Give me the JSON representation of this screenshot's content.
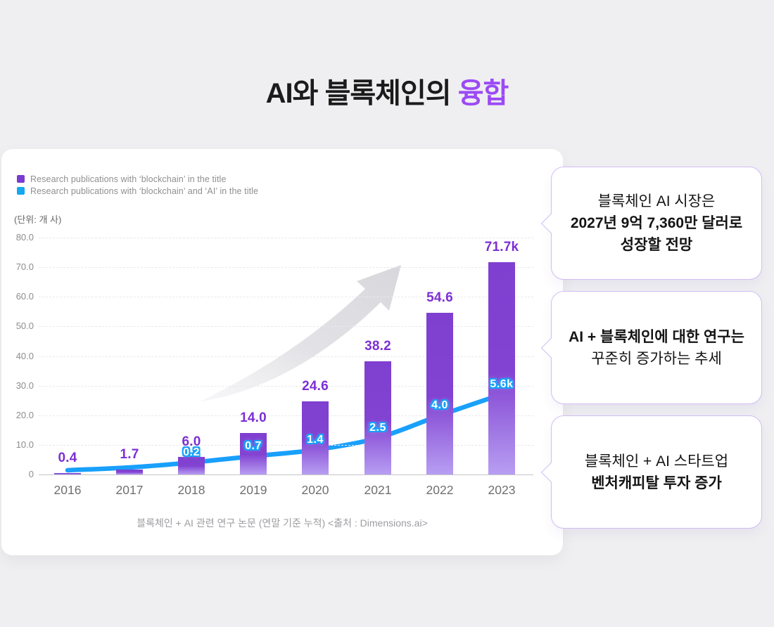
{
  "page": {
    "background": "#efeff1"
  },
  "title": {
    "prefix": "AI와 블록체인의 ",
    "highlight": "융합",
    "highlight_color": "#9b4af5"
  },
  "legend": [
    {
      "label": "Research publications with ‘blockchain’ in the title",
      "color": "#7a3bd0"
    },
    {
      "label": "Research publications with ‘blockchain’ and ‘AI’ in the title",
      "color": "#14a8f0"
    }
  ],
  "unit_label": "(단위: 개 사)",
  "caption": "블록체인 + AI 관련 연구 논문 (연말 기준 누적) <출처 : Dimensions.ai>",
  "chart_data": {
    "type": "bar",
    "title": "AI와 블록체인의 융합",
    "categories": [
      "2016",
      "2017",
      "2018",
      "2019",
      "2020",
      "2021",
      "2022",
      "2023"
    ],
    "series": [
      {
        "name": "Research publications with ‘blockchain’ in the title",
        "type": "bar",
        "unit": "thousands",
        "values": [
          0.4,
          1.7,
          6.0,
          14.0,
          24.6,
          38.2,
          54.6,
          71.7
        ],
        "labels": [
          "0.4",
          "1.7",
          "6.0",
          "14.0",
          "24.6",
          "38.2",
          "54.6",
          "71.7k"
        ],
        "color": "#7f3fd0"
      },
      {
        "name": "Research publications with ‘blockchain’ and ‘AI’ in the title",
        "type": "line",
        "unit": "thousands",
        "values": [
          0.0,
          0.05,
          0.2,
          0.7,
          1.4,
          2.5,
          4.0,
          5.6
        ],
        "labels": [
          "",
          "",
          "0.2",
          "0.7",
          "1.4",
          "2.5",
          "4.0",
          "5.6k"
        ],
        "color": "#18a0fb"
      }
    ],
    "ylabel": "(단위: 개 사)",
    "ylim": [
      0,
      80
    ],
    "yticks": [
      "80.0",
      "70.0",
      "60.0",
      "50.0",
      "40.0",
      "30.0",
      "20.0",
      "10.0",
      "0"
    ],
    "grid": true,
    "legend_position": "top-left"
  },
  "callouts": [
    {
      "lines": [
        {
          "text": "블록체인 AI 시장은",
          "bold": false
        },
        {
          "text": "2027년 9억 7,360만 달러로",
          "bold": true
        },
        {
          "text": "성장할 전망",
          "bold": true
        }
      ]
    },
    {
      "lines": [
        {
          "text": "AI + 블록체인에 대한 연구는",
          "bold": true
        },
        {
          "text": "꾸준히 증가하는 추세",
          "bold": false
        }
      ]
    },
    {
      "lines": [
        {
          "text": "블록체인 + AI 스타트업",
          "bold": false
        },
        {
          "text": "벤처캐피탈 투자 증가",
          "bold": true
        }
      ]
    }
  ]
}
